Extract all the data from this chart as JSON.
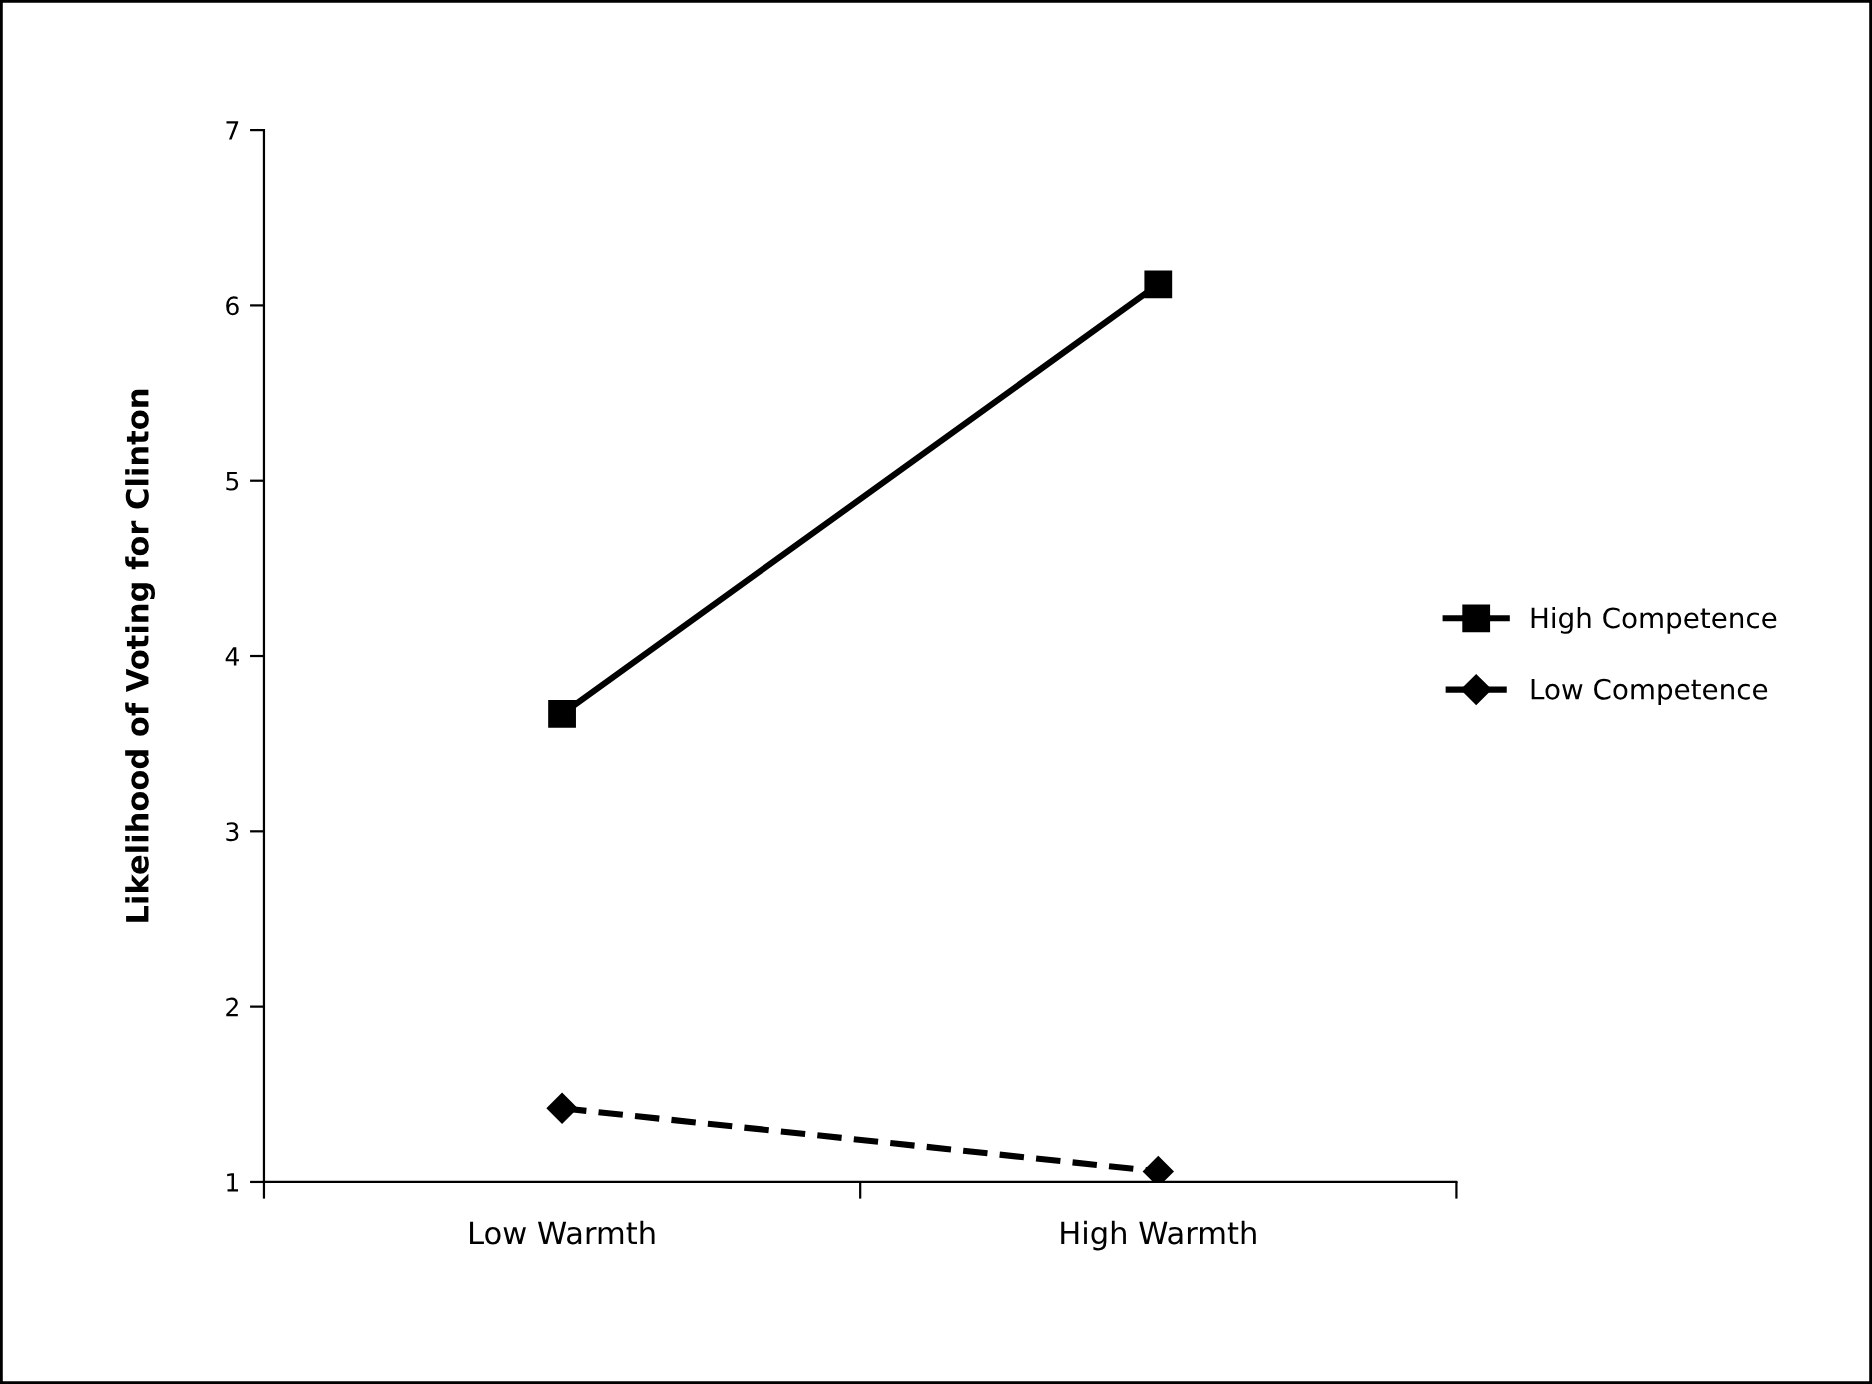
{
  "chart_data": {
    "type": "line",
    "ylabel": "Likelihood of Voting for Clinton",
    "categories": [
      "Low Warmth",
      "High Warmth"
    ],
    "series": [
      {
        "name": "High Competence",
        "color": "#000000",
        "values": [
          3.67,
          6.12
        ],
        "marker": "square",
        "line_style": "solid"
      },
      {
        "name": "Low Competence",
        "color": "#000000",
        "values": [
          1.42,
          1.06
        ],
        "marker": "diamond",
        "line_style": "dashed"
      }
    ],
    "ylim": [
      1,
      7
    ],
    "yticks": [
      1,
      2,
      3,
      4,
      5,
      6,
      7
    ],
    "grid": false,
    "legend": "right"
  }
}
